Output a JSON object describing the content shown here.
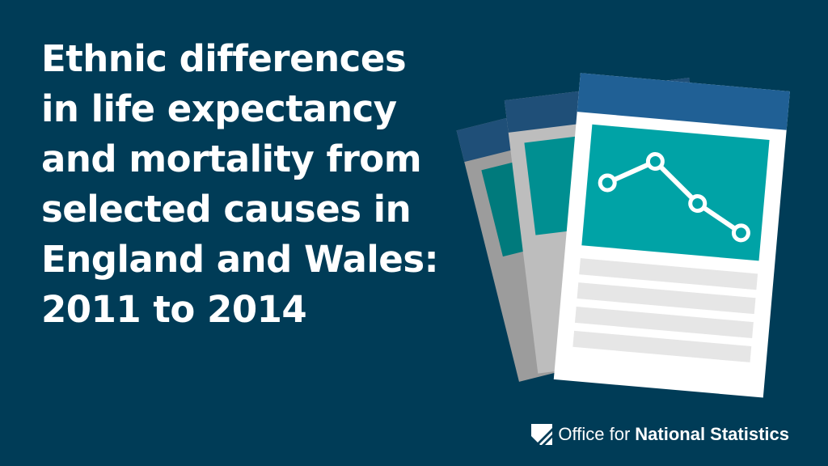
{
  "title": {
    "lines": [
      "Ethnic differences",
      "in life expectancy",
      "and mortality from",
      "selected causes in",
      "England and Wales:",
      "2011 to 2014"
    ]
  },
  "illustration": {
    "icon": "document-stack-line-chart-icon",
    "chart_points": [
      0.55,
      0.85,
      0.4,
      0.1
    ]
  },
  "logo": {
    "light_text": "Office for",
    "bold_text": "National Statistics",
    "icon": "ons-logo-icon"
  },
  "colors": {
    "background": "#003c57",
    "header_blue": "#206095",
    "teal": "#00a3a6",
    "dark_teal": "#007a7c",
    "text": "#ffffff"
  }
}
